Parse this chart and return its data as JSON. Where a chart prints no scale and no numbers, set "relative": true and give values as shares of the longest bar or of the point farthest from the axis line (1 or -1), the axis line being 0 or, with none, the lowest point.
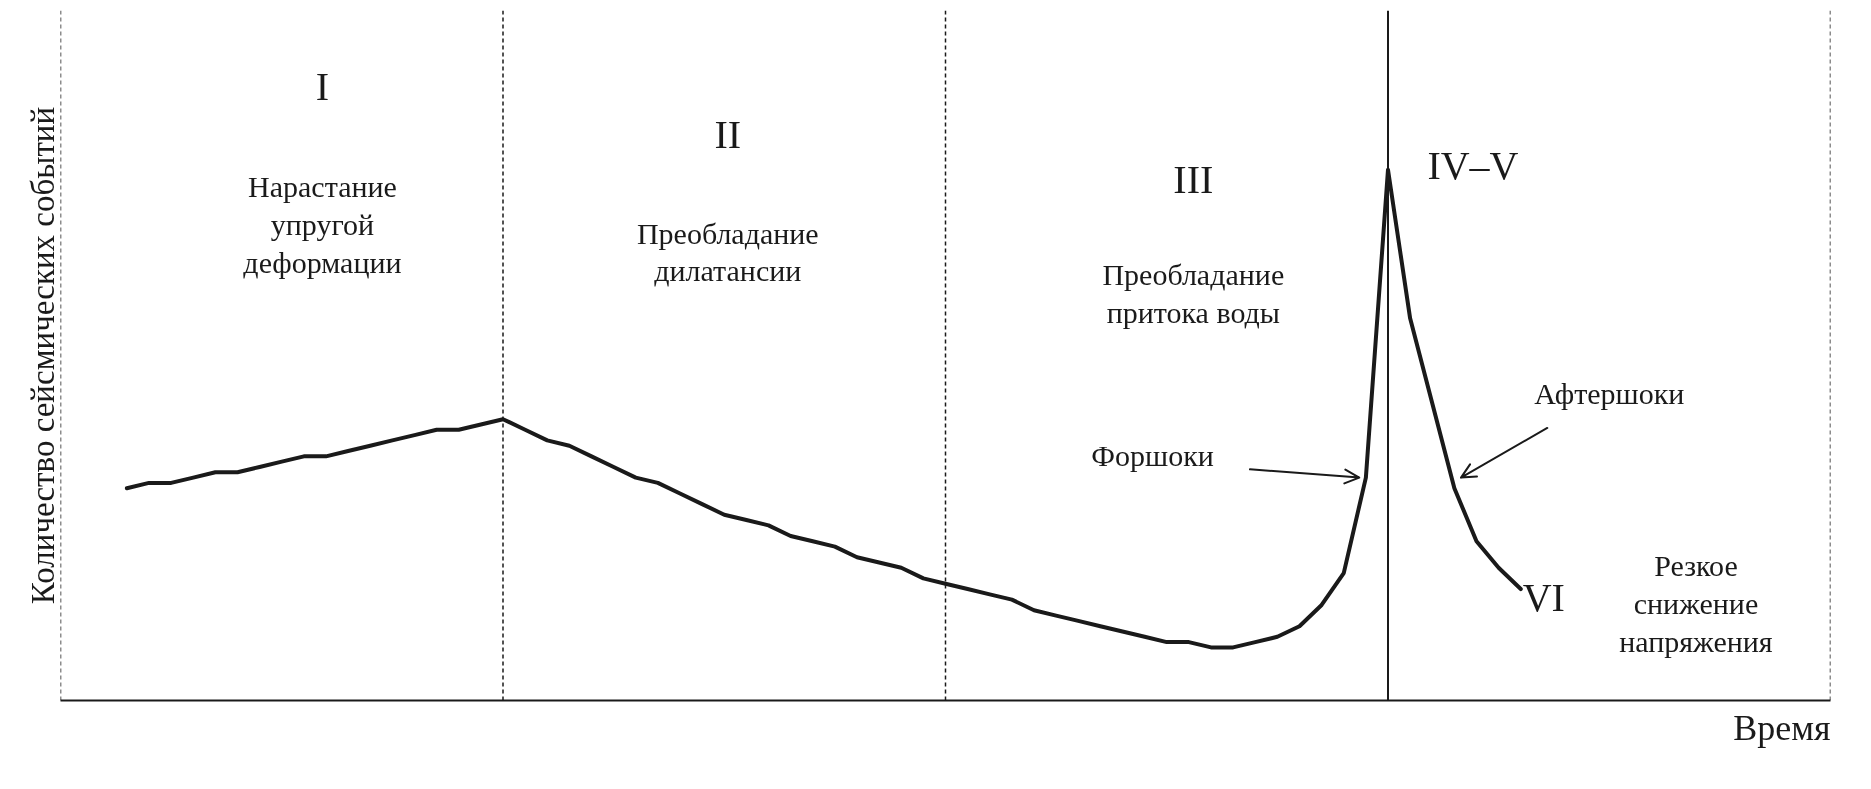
{
  "chart_data": {
    "type": "line",
    "relative": true,
    "xlabel": "Время",
    "ylabel": "Количество сейсмических событий",
    "tick_labels": false,
    "line_style": "solid",
    "marker": "none",
    "categories": [
      null,
      null,
      null,
      null,
      null,
      null,
      null,
      null,
      null,
      null,
      null,
      null,
      null,
      null,
      null,
      null,
      null,
      null,
      null,
      null,
      null,
      null,
      null,
      null,
      null,
      null,
      null,
      null,
      null,
      null,
      null,
      null,
      null,
      null,
      null,
      null,
      null,
      null,
      null,
      null,
      null,
      null,
      null,
      null,
      null,
      null,
      null,
      null,
      null,
      null,
      null,
      null,
      null,
      null,
      null,
      null,
      null,
      null,
      null,
      null,
      null,
      null,
      null,
      null,
      null,
      null,
      null,
      null,
      null,
      null,
      null,
      null,
      null,
      null,
      null,
      null,
      null,
      null,
      null,
      null,
      null
    ],
    "series": [
      {
        "color": "#1a1a1a",
        "values": [
          null,
          null,
          null,
          0.4,
          0.41,
          0.41,
          0.42,
          0.43,
          0.43,
          0.44,
          0.45,
          0.46,
          0.46,
          0.47,
          0.48,
          0.49,
          0.5,
          0.51,
          0.51,
          0.52,
          0.53,
          0.51,
          0.49,
          0.48,
          0.46,
          0.44,
          0.42,
          0.41,
          0.39,
          0.37,
          0.35,
          0.34,
          0.33,
          0.31,
          0.3,
          0.29,
          0.27,
          0.26,
          0.25,
          0.23,
          0.22,
          0.21,
          0.2,
          0.19,
          0.17,
          0.16,
          0.15,
          0.14,
          0.13,
          0.12,
          0.11,
          0.11,
          0.1,
          0.1,
          0.11,
          0.12,
          0.14,
          0.18,
          0.24,
          0.42,
          1.0,
          0.72,
          0.56,
          0.4,
          0.3,
          0.25,
          0.21,
          null,
          null,
          null,
          null,
          null,
          null,
          null,
          null,
          null,
          null,
          null,
          null,
          null,
          null
        ]
      }
    ],
    "annotations": [
      "I",
      "Нарастание\nупругой\nдеформации",
      "II",
      "Преобладание\nдилатансии",
      "III",
      "Преобладание\nпритока воды",
      "IV–V",
      "Форшоки",
      "Афтершоки",
      "VI",
      "Резкое\nснижение\nнапряжения"
    ]
  }
}
